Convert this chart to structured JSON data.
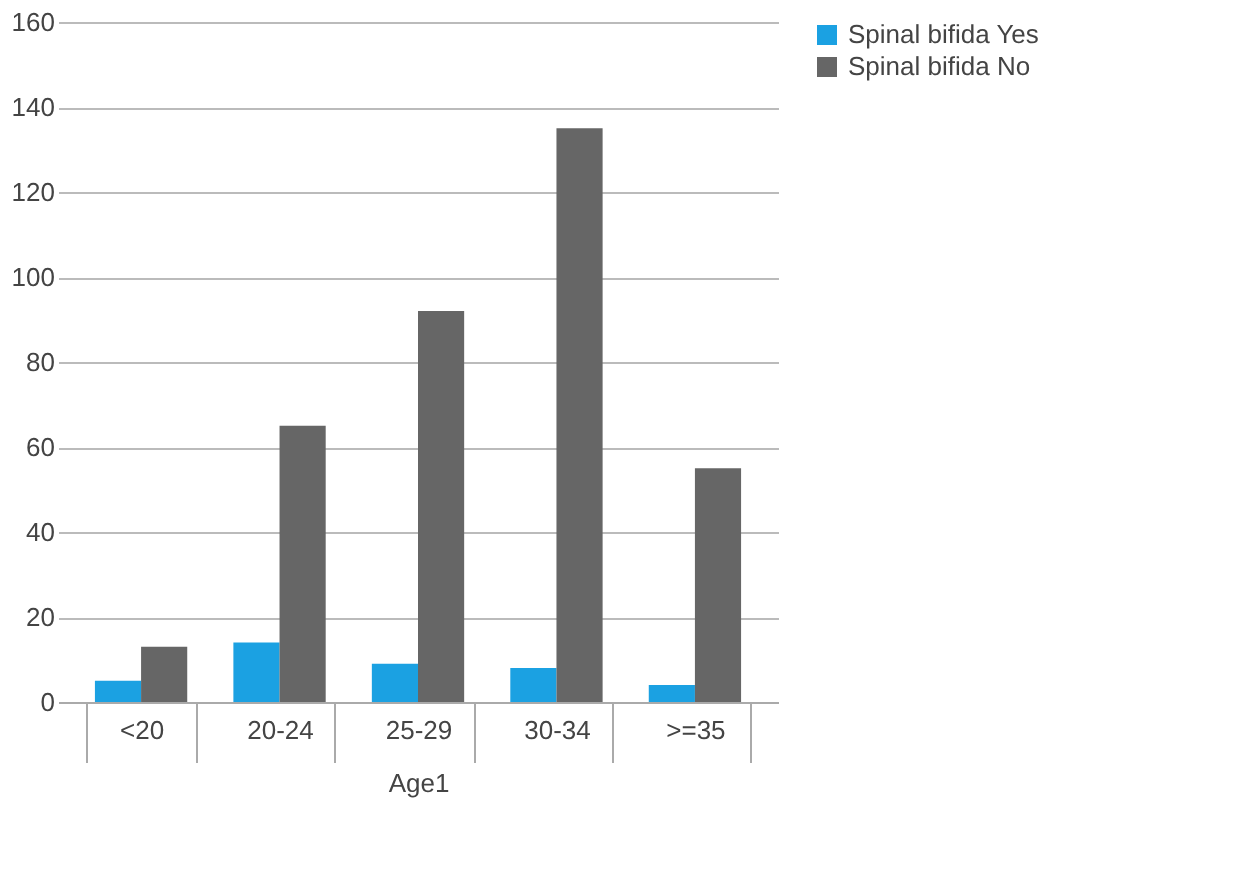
{
  "chart_data": {
    "type": "bar",
    "xlabel": "Age1",
    "categories": [
      "<20",
      "20-24",
      "25-29",
      "30-34",
      ">=35"
    ],
    "series": [
      {
        "name": "Spinal bifida Yes",
        "color": "#1ba1e2",
        "values": [
          5,
          14,
          9,
          8,
          4
        ]
      },
      {
        "name": "Spinal bifida No",
        "color": "#666666",
        "values": [
          13,
          65,
          92,
          135,
          55
        ]
      }
    ],
    "ylim": [
      0,
      160
    ],
    "yticks": [
      0,
      20,
      40,
      60,
      80,
      100,
      120,
      140,
      160
    ],
    "grid": "y",
    "legend": "right"
  }
}
